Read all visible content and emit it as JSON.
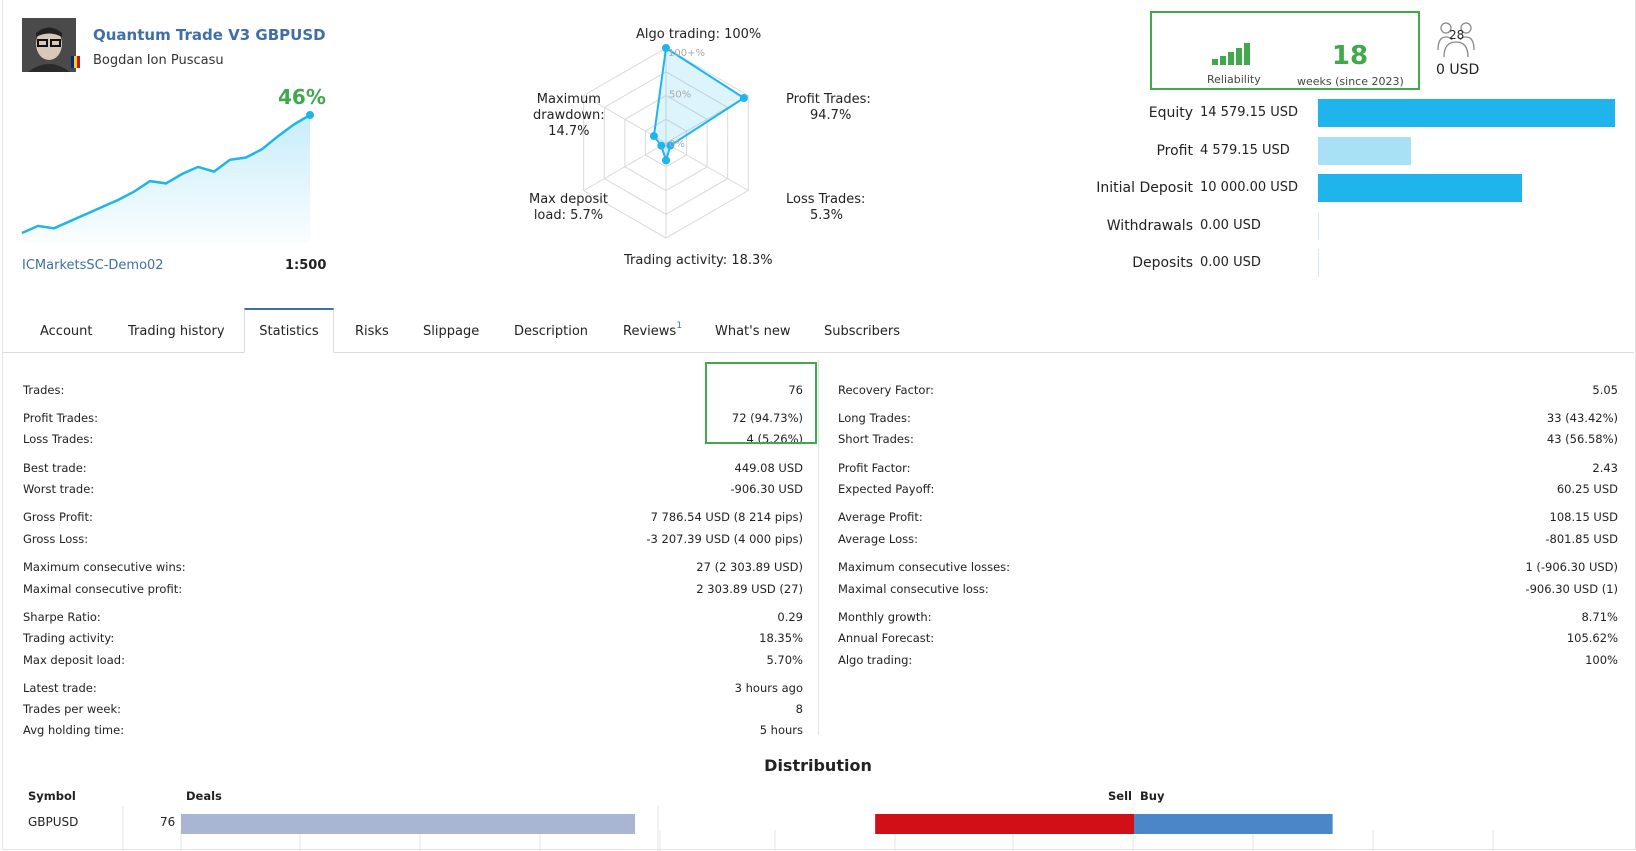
{
  "header": {
    "title": "Quantum Trade V3 GBPUSD",
    "author": "Bogdan Ion Puscasu",
    "growth": "46%",
    "server": "ICMarketsSC-Demo02",
    "leverage": "1:500",
    "growth_curve": [
      0,
      6,
      4,
      10,
      16,
      22,
      28,
      35,
      44,
      42,
      50,
      56,
      52,
      62,
      64,
      71,
      82,
      92,
      100
    ]
  },
  "radar": {
    "algo": "Algo trading: 100%",
    "profit_label": "Profit Trades:",
    "profit_value": "94.7%",
    "loss_label": "Loss Trades:",
    "loss_value": "5.3%",
    "activity": "Trading activity: 18.3%",
    "deposit_label": "Max deposit",
    "deposit_value": "load: 5.7%",
    "drawdown_label": "Maximum",
    "drawdown_label2": "drawdown:",
    "drawdown_value": "14.7%",
    "ring_100": "100+%",
    "ring_50": "50%",
    "ring_0": "0%",
    "values_pct": [
      100,
      94.7,
      5.3,
      18.3,
      5.7,
      14.7
    ]
  },
  "reliability": {
    "label": "Reliability",
    "weeks": "18",
    "weeks_label": "weeks (since 2023)",
    "level_of_5": 5
  },
  "subscribers": {
    "count": "28",
    "usd": "0 USD"
  },
  "balance": [
    {
      "label": "Equity",
      "value": "14 579.15 USD",
      "amount": 14579.15,
      "color": "#1fb5ec"
    },
    {
      "label": "Profit",
      "value": "4 579.15 USD",
      "amount": 4579.15,
      "color": "#a8e0f5"
    },
    {
      "label": "Initial Deposit",
      "value": "10 000.00 USD",
      "amount": 10000,
      "color": "#1fb5ec"
    },
    {
      "label": "Withdrawals",
      "value": "0.00 USD",
      "amount": 0,
      "color": "#1fb5ec"
    },
    {
      "label": "Deposits",
      "value": "0.00 USD",
      "amount": 0,
      "color": "#1fb5ec"
    }
  ],
  "tabs": [
    "Account",
    "Trading history",
    "Statistics",
    "Risks",
    "Slippage",
    "Description",
    "Reviews",
    "What's new",
    "Subscribers"
  ],
  "reviews_badge": "1",
  "stats_left": [
    {
      "k": "Trades:",
      "v": "76"
    },
    {
      "k": "Profit Trades:",
      "v": "72 (94.73%)"
    },
    {
      "k": "Loss Trades:",
      "v": "4 (5.26%)"
    },
    {
      "k": "Best trade:",
      "v": "449.08 USD"
    },
    {
      "k": "Worst trade:",
      "v": "-906.30 USD"
    },
    {
      "k": "Gross Profit:",
      "v": "7 786.54 USD (8 214 pips)"
    },
    {
      "k": "Gross Loss:",
      "v": "-3 207.39 USD (4 000 pips)"
    },
    {
      "k": "Maximum consecutive wins:",
      "v": "27 (2 303.89 USD)"
    },
    {
      "k": "Maximal consecutive profit:",
      "v": "2 303.89 USD (27)"
    },
    {
      "k": "Sharpe Ratio:",
      "v": "0.29"
    },
    {
      "k": "Trading activity:",
      "v": "18.35%"
    },
    {
      "k": "Max deposit load:",
      "v": "5.70%"
    },
    {
      "k": "Latest trade:",
      "v": "3 hours ago"
    },
    {
      "k": "Trades per week:",
      "v": "8"
    },
    {
      "k": "Avg holding time:",
      "v": "5 hours"
    }
  ],
  "stats_right": [
    {
      "k": "Recovery Factor:",
      "v": "5.05"
    },
    {
      "k": "Long Trades:",
      "v": "33 (43.42%)"
    },
    {
      "k": "Short Trades:",
      "v": "43 (56.58%)"
    },
    {
      "k": "Profit Factor:",
      "v": "2.43"
    },
    {
      "k": "Expected Payoff:",
      "v": "60.25 USD"
    },
    {
      "k": "Average Profit:",
      "v": "108.15 USD"
    },
    {
      "k": "Average Loss:",
      "v": "-801.85 USD"
    },
    {
      "k": "Maximum consecutive losses:",
      "v": "1 (-906.30 USD)"
    },
    {
      "k": "Maximal consecutive loss:",
      "v": "-906.30 USD (1)"
    },
    {
      "k": "Monthly growth:",
      "v": "8.71%"
    },
    {
      "k": "Annual Forecast:",
      "v": "105.62%"
    },
    {
      "k": "Algo trading:",
      "v": "100%"
    }
  ],
  "distribution": {
    "title": "Distribution",
    "symbol_header": "Symbol",
    "deals_header": "Deals",
    "sell_header": "Sell",
    "buy_header": "Buy",
    "symbol": "GBPUSD",
    "deals": "76",
    "sell": 43,
    "buy": 33,
    "colors": {
      "deals": "#a9b6d3",
      "sell": "#d10f16",
      "buy": "#4b86c8"
    }
  }
}
